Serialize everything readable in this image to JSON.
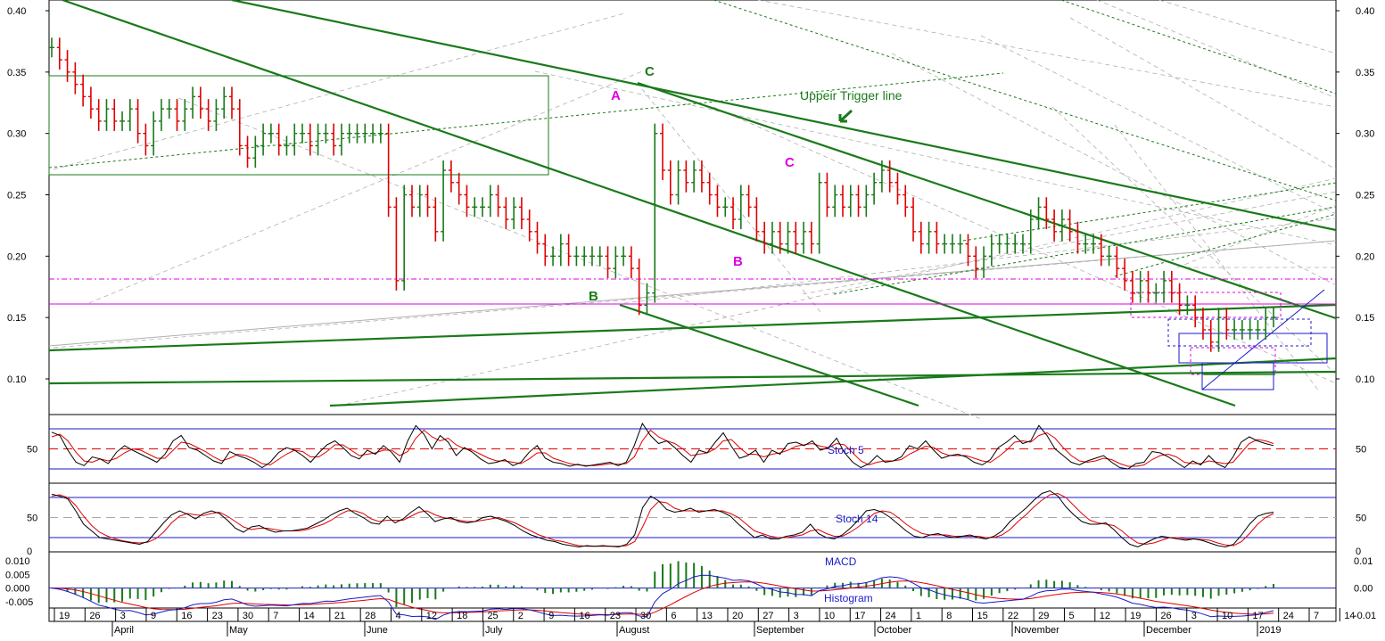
{
  "colors": {
    "up_bar": "#1a7a1a",
    "down_bar": "#e00000",
    "trend_line": "#1a7a1a",
    "stoch_k": "#000000",
    "stoch_d": "#e00000",
    "macd_line": "#1a1acc",
    "signal_line": "#e00000",
    "histogram": "#1a7a1a",
    "magenta": "#e000e0",
    "band_blue": "#1a1acc",
    "grid_gray": "#b0b0b0"
  },
  "chart_data": [
    {
      "type": "ohlc-bar",
      "panel": "price",
      "title": "",
      "ylim": [
        0.08,
        0.4
      ],
      "y_ticks": [
        "0.40",
        "0.35",
        "0.30",
        "0.25",
        "0.20",
        "0.15",
        "0.10"
      ],
      "y_tick_values": [
        0.4,
        0.35,
        0.3,
        0.25,
        0.2,
        0.15,
        0.1
      ],
      "close": [
        0.37,
        0.36,
        0.35,
        0.34,
        0.33,
        0.32,
        0.31,
        0.32,
        0.31,
        0.31,
        0.32,
        0.3,
        0.29,
        0.31,
        0.32,
        0.32,
        0.31,
        0.32,
        0.33,
        0.32,
        0.31,
        0.32,
        0.33,
        0.32,
        0.29,
        0.28,
        0.29,
        0.3,
        0.3,
        0.29,
        0.29,
        0.3,
        0.3,
        0.29,
        0.3,
        0.3,
        0.29,
        0.3,
        0.3,
        0.3,
        0.3,
        0.3,
        0.3,
        0.24,
        0.18,
        0.25,
        0.24,
        0.25,
        0.24,
        0.22,
        0.27,
        0.26,
        0.25,
        0.24,
        0.24,
        0.24,
        0.25,
        0.24,
        0.23,
        0.24,
        0.23,
        0.22,
        0.21,
        0.2,
        0.2,
        0.21,
        0.2,
        0.2,
        0.2,
        0.2,
        0.2,
        0.19,
        0.2,
        0.2,
        0.19,
        0.16,
        0.17,
        0.3,
        0.27,
        0.25,
        0.27,
        0.26,
        0.27,
        0.26,
        0.25,
        0.24,
        0.24,
        0.23,
        0.25,
        0.24,
        0.22,
        0.21,
        0.22,
        0.21,
        0.22,
        0.21,
        0.22,
        0.21,
        0.26,
        0.24,
        0.25,
        0.24,
        0.25,
        0.24,
        0.25,
        0.26,
        0.27,
        0.26,
        0.25,
        0.24,
        0.22,
        0.21,
        0.22,
        0.21,
        0.21,
        0.21,
        0.21,
        0.2,
        0.19,
        0.2,
        0.21,
        0.21,
        0.21,
        0.21,
        0.21,
        0.23,
        0.24,
        0.23,
        0.22,
        0.23,
        0.22,
        0.21,
        0.21,
        0.21,
        0.2,
        0.2,
        0.19,
        0.18,
        0.17,
        0.18,
        0.17,
        0.17,
        0.18,
        0.17,
        0.16,
        0.16,
        0.15,
        0.14,
        0.13,
        0.15,
        0.14,
        0.14,
        0.14,
        0.14,
        0.14,
        0.15,
        0.15
      ]
    },
    {
      "type": "line",
      "panel": "stoch5",
      "label": "Stoch 5",
      "y_ticks": [
        "50"
      ],
      "y_tick_values": [
        50
      ],
      "ylim": [
        0,
        100
      ],
      "reference_lines": [
        20,
        50,
        80
      ],
      "k": [
        75,
        70,
        48,
        30,
        25,
        38,
        35,
        28,
        45,
        55,
        48,
        42,
        36,
        30,
        42,
        62,
        70,
        52,
        48,
        40,
        32,
        28,
        46,
        40,
        36,
        30,
        22,
        30,
        44,
        52,
        48,
        40,
        30,
        44,
        56,
        62,
        52,
        40,
        35,
        48,
        42,
        55,
        45,
        30,
        62,
        85,
        72,
        50,
        70,
        60,
        40,
        52,
        45,
        35,
        28,
        30,
        34,
        25,
        30,
        45,
        55,
        36,
        30,
        28,
        24,
        27,
        24,
        26,
        28,
        30,
        25,
        30,
        55,
        88,
        70,
        58,
        62,
        52,
        40,
        30,
        48,
        44,
        60,
        74,
        54,
        36,
        40,
        48,
        30,
        48,
        42,
        58,
        60,
        55,
        62,
        48,
        52,
        66,
        44,
        30,
        22,
        28,
        40,
        30,
        32,
        38,
        55,
        50,
        62,
        48,
        36,
        40,
        42,
        38,
        30,
        26,
        34,
        52,
        60,
        70,
        58,
        62,
        85,
        70,
        50,
        40,
        30,
        26,
        32,
        36,
        40,
        30,
        22,
        20,
        28,
        30,
        46,
        44,
        38,
        30,
        22,
        32,
        26,
        40,
        28,
        22,
        38,
        60,
        68,
        62,
        58,
        55
      ],
      "d": [
        68,
        72,
        62,
        45,
        32,
        30,
        35,
        32,
        36,
        44,
        50,
        48,
        42,
        36,
        36,
        48,
        60,
        58,
        52,
        46,
        38,
        32,
        36,
        42,
        40,
        35,
        28,
        26,
        34,
        42,
        48,
        46,
        38,
        38,
        46,
        56,
        56,
        48,
        40,
        42,
        44,
        48,
        48,
        40,
        46,
        66,
        78,
        68,
        62,
        66,
        56,
        50,
        48,
        42,
        36,
        32,
        32,
        30,
        28,
        35,
        44,
        44,
        36,
        32,
        28,
        26,
        25,
        25,
        26,
        28,
        27,
        28,
        38,
        62,
        78,
        68,
        62,
        58,
        50,
        40,
        42,
        44,
        50,
        62,
        64,
        52,
        42,
        42,
        38,
        42,
        44,
        48,
        54,
        56,
        58,
        54,
        52,
        58,
        56,
        44,
        32,
        26,
        30,
        32,
        32,
        34,
        42,
        48,
        54,
        52,
        44,
        40,
        40,
        40,
        36,
        32,
        30,
        38,
        48,
        60,
        62,
        60,
        70,
        74,
        66,
        52,
        40,
        32,
        30,
        32,
        36,
        34,
        28,
        24,
        24,
        26,
        34,
        40,
        42,
        38,
        30,
        28,
        28,
        32,
        30,
        28,
        30,
        44,
        58,
        64,
        62,
        58
      ]
    },
    {
      "type": "line",
      "panel": "stoch14",
      "label": "Stoch 14",
      "y_ticks": [
        "50",
        "0"
      ],
      "y_tick_values": [
        50,
        0
      ],
      "ylim": [
        0,
        100
      ],
      "reference_lines": [
        20,
        50,
        80
      ],
      "k": [
        85,
        82,
        78,
        60,
        40,
        30,
        20,
        18,
        16,
        14,
        12,
        10,
        14,
        28,
        42,
        54,
        60,
        55,
        48,
        56,
        60,
        56,
        46,
        34,
        28,
        36,
        38,
        32,
        28,
        30,
        30,
        32,
        34,
        40,
        46,
        54,
        60,
        64,
        56,
        50,
        42,
        40,
        52,
        42,
        48,
        58,
        66,
        56,
        44,
        48,
        50,
        44,
        42,
        44,
        50,
        52,
        48,
        44,
        38,
        30,
        24,
        20,
        16,
        14,
        10,
        8,
        6,
        8,
        7,
        8,
        7,
        6,
        10,
        24,
        65,
        82,
        75,
        62,
        58,
        60,
        64,
        58,
        60,
        62,
        58,
        52,
        40,
        30,
        20,
        24,
        18,
        18,
        22,
        24,
        28,
        40,
        26,
        20,
        18,
        24,
        34,
        46,
        60,
        62,
        58,
        50,
        40,
        30,
        22,
        20,
        24,
        26,
        22,
        20,
        22,
        24,
        20,
        18,
        22,
        30,
        44,
        54,
        64,
        76,
        86,
        90,
        82,
        66,
        54,
        44,
        40,
        40,
        42,
        32,
        20,
        10,
        6,
        12,
        18,
        22,
        20,
        18,
        16,
        18,
        16,
        12,
        8,
        6,
        10,
        24,
        40,
        52,
        56,
        58
      ],
      "d": [
        82,
        84,
        80,
        68,
        52,
        38,
        28,
        22,
        18,
        15,
        13,
        12,
        13,
        18,
        28,
        42,
        52,
        56,
        54,
        53,
        56,
        58,
        52,
        44,
        36,
        32,
        34,
        34,
        32,
        30,
        30,
        30,
        32,
        36,
        40,
        46,
        54,
        60,
        60,
        56,
        48,
        44,
        46,
        46,
        46,
        52,
        58,
        60,
        54,
        50,
        48,
        46,
        44,
        44,
        46,
        48,
        50,
        46,
        42,
        36,
        30,
        24,
        20,
        16,
        14,
        11,
        8,
        7,
        7,
        7,
        7,
        7,
        8,
        14,
        36,
        62,
        74,
        72,
        64,
        60,
        60,
        60,
        60,
        60,
        60,
        56,
        50,
        40,
        30,
        26,
        22,
        20,
        20,
        22,
        24,
        30,
        32,
        26,
        22,
        22,
        28,
        36,
        46,
        56,
        60,
        58,
        50,
        40,
        32,
        26,
        24,
        24,
        24,
        22,
        22,
        22,
        22,
        20,
        20,
        24,
        32,
        44,
        54,
        66,
        76,
        84,
        86,
        80,
        68,
        56,
        46,
        42,
        40,
        38,
        30,
        20,
        12,
        10,
        12,
        16,
        20,
        20,
        18,
        18,
        17,
        16,
        12,
        9,
        8,
        14,
        26,
        40,
        50,
        56
      ]
    },
    {
      "type": "bar+line",
      "panel": "macd",
      "label": "MACD",
      "histogram_label": "Histogram",
      "y_ticks_left": [
        "0.010",
        "0.005",
        "0.000",
        "-0.005"
      ],
      "y_tick_values_left": [
        0.01,
        0.005,
        0.0,
        -0.005
      ],
      "y_ticks_right": [
        "0.01",
        "0.00",
        "-0.01"
      ],
      "y_tick_values_right": [
        0.01,
        0.0,
        -0.01
      ],
      "ylim": [
        -0.007,
        0.013
      ]
    }
  ],
  "x_axis": {
    "day_labels": [
      "19",
      "26",
      "3",
      "9",
      "16",
      "23",
      "30",
      "7",
      "14",
      "21",
      "28",
      "4",
      "12",
      "18",
      "25",
      "2",
      "9",
      "16",
      "23",
      "30",
      "6",
      "13",
      "20",
      "27",
      "3",
      "10",
      "17",
      "24",
      "1",
      "8",
      "15",
      "22",
      "29",
      "5",
      "12",
      "19",
      "26",
      "3",
      "10",
      "17",
      "24",
      "7",
      "14"
    ],
    "month_labels": [
      "April",
      "May",
      "June",
      "July",
      "August",
      "September",
      "October",
      "November",
      "December",
      "2019"
    ]
  },
  "annotations": {
    "A1": "A",
    "C1": "C",
    "B1": "B",
    "B2": "B",
    "C2": "C",
    "trigger": "Uppeir Trigger line"
  }
}
